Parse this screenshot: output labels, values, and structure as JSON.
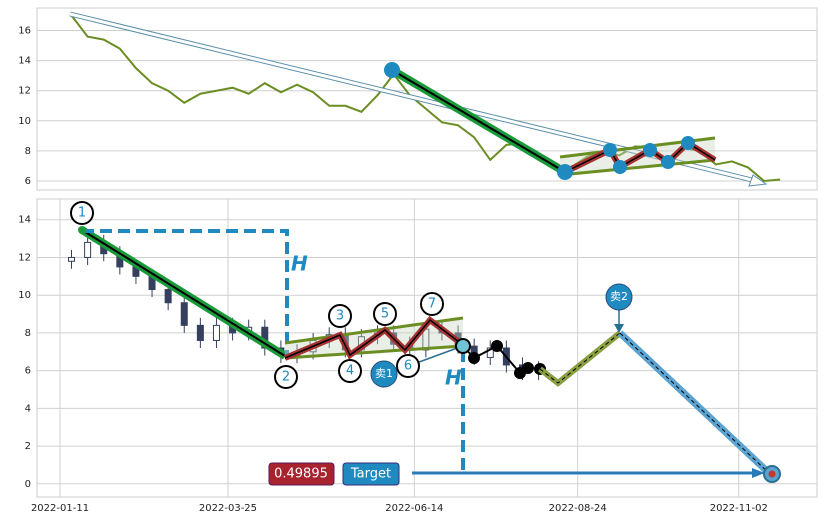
{
  "chart_data": [
    {
      "type": "line",
      "x": [
        "2022-01-16",
        "2022-01-23",
        "2022-01-30",
        "2022-02-06",
        "2022-02-13",
        "2022-02-20",
        "2022-02-27",
        "2022-03-06",
        "2022-03-13",
        "2022-03-20",
        "2022-03-27",
        "2022-04-03",
        "2022-04-10",
        "2022-04-17",
        "2022-04-24",
        "2022-05-01",
        "2022-05-08",
        "2022-05-15",
        "2022-05-22",
        "2022-05-29",
        "2022-06-05",
        "2022-06-12",
        "2022-06-19",
        "2022-06-26",
        "2022-07-03",
        "2022-07-10",
        "2022-07-17",
        "2022-07-24",
        "2022-07-31",
        "2022-08-07",
        "2022-08-14",
        "2022-08-21",
        "2022-08-28",
        "2022-09-04",
        "2022-09-11",
        "2022-09-18",
        "2022-09-25",
        "2022-10-02",
        "2022-10-09",
        "2022-10-16",
        "2022-10-23",
        "2022-10-30",
        "2022-11-06",
        "2022-11-13",
        "2022-11-20"
      ],
      "values": [
        17.0,
        15.6,
        15.4,
        14.8,
        13.5,
        12.5,
        12.0,
        11.2,
        11.8,
        12.0,
        12.2,
        11.8,
        12.5,
        11.9,
        12.4,
        11.9,
        11.0,
        11.0,
        10.6,
        11.7,
        13.1,
        11.7,
        10.8,
        9.9,
        9.7,
        8.9,
        7.4,
        8.4,
        8.5,
        7.6,
        7.0,
        6.9,
        7.6,
        8.0,
        7.7,
        8.3,
        8.2,
        7.4,
        8.2,
        8.0,
        7.1,
        7.3,
        6.9,
        6.0,
        6.1
      ],
      "color": "#6b8e23",
      "xlim": [
        "2022-01-01",
        "2022-12-06"
      ],
      "ylim": [
        5.4,
        17.5
      ],
      "yticks": [
        6,
        8,
        10,
        12,
        14,
        16
      ],
      "grid": true
    },
    {
      "type": "candlestick",
      "x": [
        "2022-01-16",
        "2022-01-23",
        "2022-01-30",
        "2022-02-06",
        "2022-02-13",
        "2022-02-20",
        "2022-02-27",
        "2022-03-06",
        "2022-03-13",
        "2022-03-20",
        "2022-03-27",
        "2022-04-03",
        "2022-04-10",
        "2022-04-17",
        "2022-04-24",
        "2022-05-01",
        "2022-05-08",
        "2022-05-15",
        "2022-05-22",
        "2022-05-29",
        "2022-06-05",
        "2022-06-12",
        "2022-06-19",
        "2022-06-26",
        "2022-07-03",
        "2022-07-10",
        "2022-07-17",
        "2022-07-24",
        "2022-07-31",
        "2022-08-07"
      ],
      "open": [
        11.8,
        12.0,
        12.8,
        12.2,
        11.5,
        11.0,
        10.3,
        9.6,
        8.4,
        7.6,
        8.4,
        8.0,
        8.3,
        7.2,
        6.8,
        7.0,
        7.6,
        7.9,
        7.1,
        7.8,
        8.0,
        7.4,
        7.1,
        8.2,
        8.0,
        7.3,
        6.7,
        7.2,
        6.3,
        5.9
      ],
      "high": [
        12.4,
        13.2,
        13.2,
        12.6,
        11.9,
        11.4,
        10.7,
        10.0,
        8.8,
        8.8,
        8.8,
        8.7,
        8.7,
        7.6,
        7.4,
        8.0,
        8.3,
        8.3,
        8.2,
        8.4,
        8.4,
        7.8,
        8.6,
        8.6,
        8.4,
        7.7,
        7.6,
        7.6,
        6.7,
        6.5
      ],
      "low": [
        11.4,
        11.6,
        11.8,
        11.1,
        10.6,
        9.9,
        9.2,
        8.0,
        7.2,
        7.2,
        7.6,
        7.6,
        6.8,
        6.4,
        6.4,
        6.6,
        7.2,
        6.7,
        6.7,
        7.4,
        7.0,
        6.7,
        6.7,
        7.6,
        6.9,
        6.3,
        6.3,
        5.9,
        5.5,
        5.5
      ],
      "close": [
        12.0,
        12.8,
        12.2,
        11.5,
        11.0,
        10.3,
        9.6,
        8.4,
        7.6,
        8.4,
        8.0,
        8.3,
        7.2,
        6.8,
        7.0,
        7.6,
        7.9,
        7.1,
        7.8,
        8.0,
        7.4,
        7.1,
        8.2,
        8.0,
        7.3,
        6.7,
        7.2,
        6.3,
        5.9,
        6.1
      ],
      "color": "#34405e",
      "xlim": [
        "2022-01-01",
        "2022-12-06"
      ],
      "ylim": [
        -0.7,
        15.1
      ],
      "yticks": [
        0,
        2,
        4,
        6,
        8,
        10,
        12,
        14
      ],
      "xticks": [
        "2022-01-11",
        "2022-03-25",
        "2022-06-14",
        "2022-08-24",
        "2022-11-02"
      ],
      "grid": true,
      "annotations": {
        "points": [
          "1",
          "2",
          "3",
          "4",
          "5",
          "6",
          "7"
        ],
        "h_labels": [
          "H",
          "H"
        ],
        "sell_labels": [
          "卖1",
          "卖2"
        ],
        "ratio": 0.49895,
        "target": "Target"
      }
    }
  ]
}
